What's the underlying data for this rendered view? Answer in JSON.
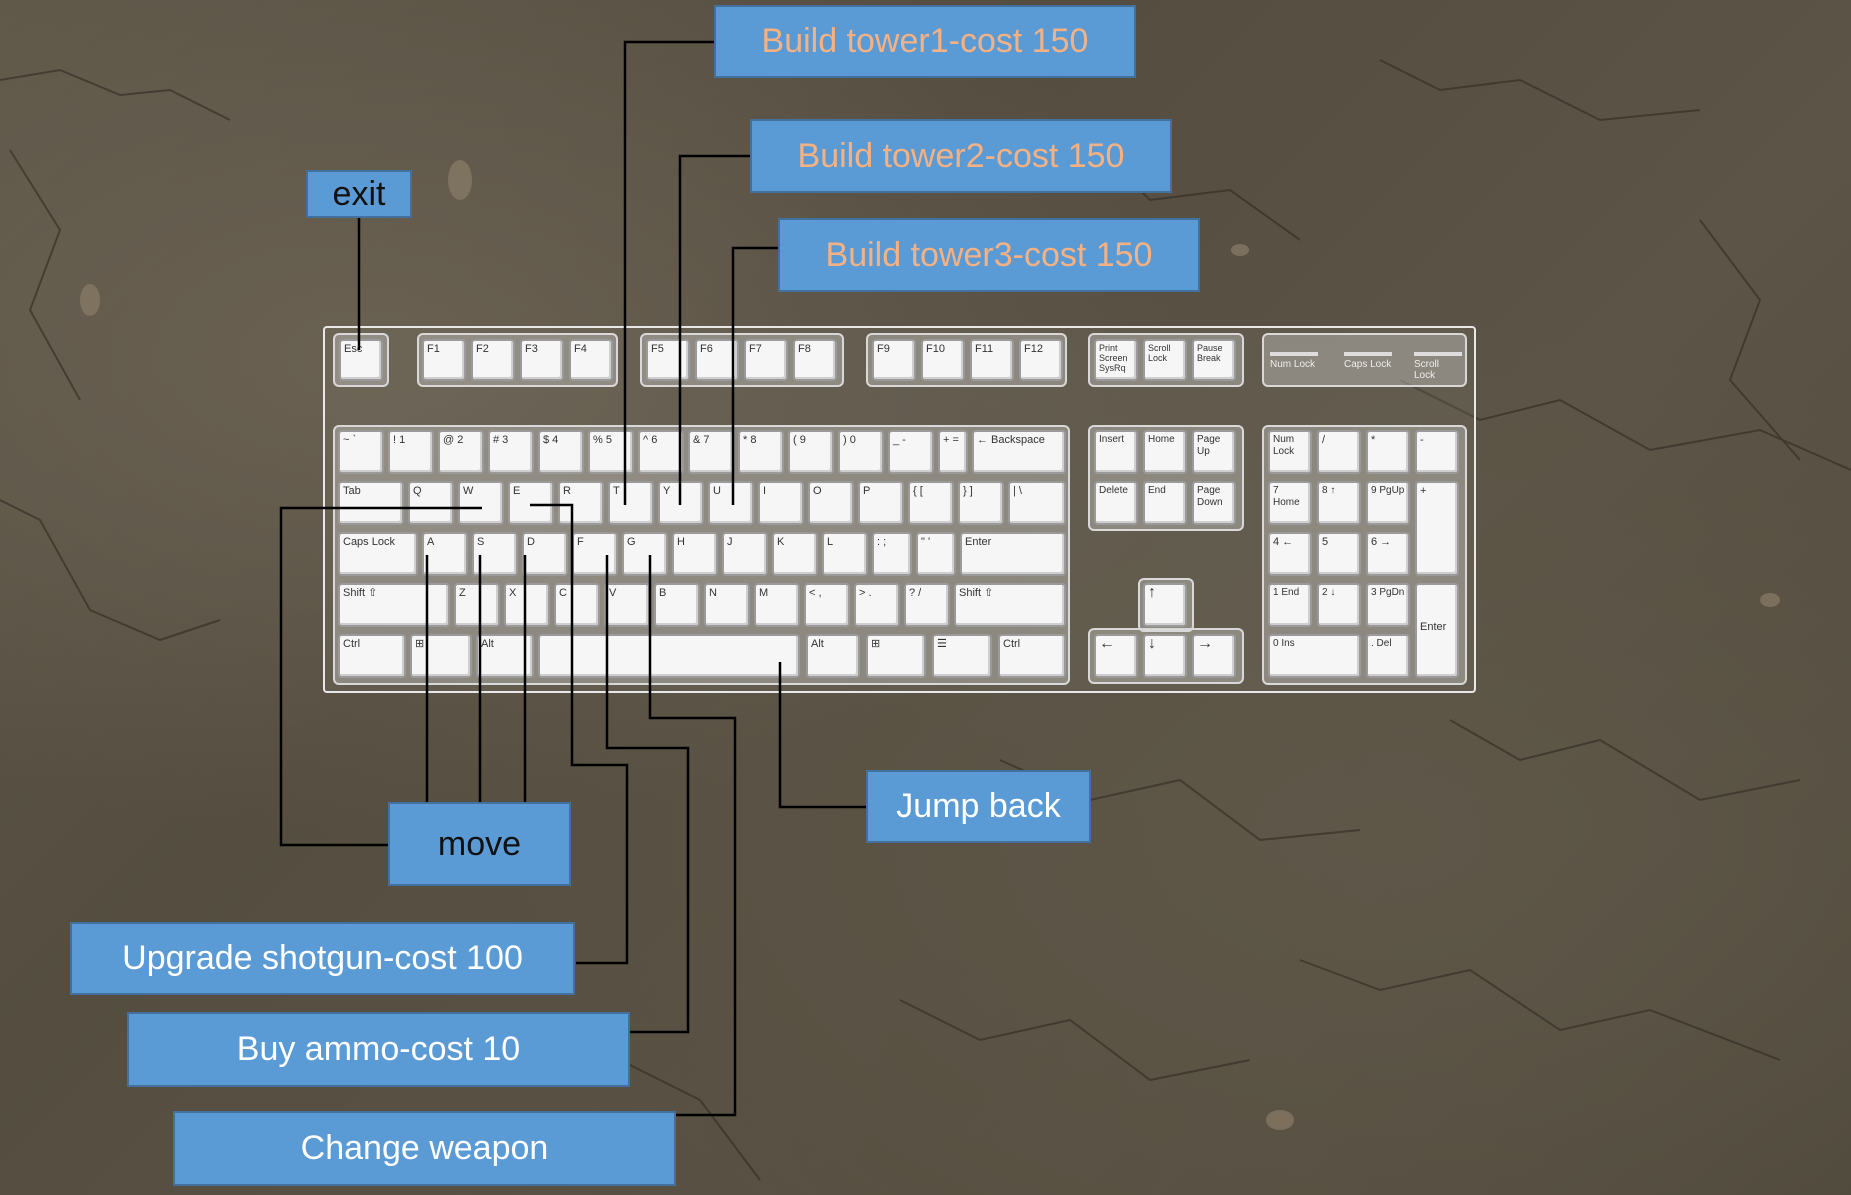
{
  "labels": {
    "tower1": "Build tower1-cost 150",
    "tower2": "Build tower2-cost 150",
    "tower3": "Build tower3-cost 150",
    "exit": "exit",
    "jump_back": "Jump back",
    "move": "move",
    "upgrade_shotgun": "Upgrade shotgun-cost 100",
    "buy_ammo": "Buy ammo-cost 10",
    "change_weapon": "Change weapon"
  },
  "colors": {
    "label_fill": "#5b9bd5",
    "label_border": "#41719c",
    "tower_text": "#f4b183",
    "dark_text": "#111111",
    "white_text": "#ffffff",
    "leader_line": "#000000"
  },
  "keyboard": {
    "fn_row": [
      "Esc",
      "F1",
      "F2",
      "F3",
      "F4",
      "F5",
      "F6",
      "F7",
      "F8",
      "F9",
      "F10",
      "F11",
      "F12"
    ],
    "sys_keys": [
      "Print Screen SysRq",
      "Scroll Lock",
      "Pause Break"
    ],
    "lock_lights": [
      "Num Lock",
      "Caps Lock",
      "Scroll Lock"
    ],
    "row1": [
      "~ `",
      "! 1",
      "@ 2",
      "# 3",
      "$ 4",
      "% 5",
      "^ 6",
      "& 7",
      "* 8",
      "( 9",
      ") 0",
      "_ -",
      "+ =",
      "← Backspace"
    ],
    "row2": [
      "Tab",
      "Q",
      "W",
      "E",
      "R",
      "T",
      "Y",
      "U",
      "I",
      "O",
      "P",
      "{ [",
      "} ]",
      "| \\"
    ],
    "row3": [
      "Caps Lock",
      "A",
      "S",
      "D",
      "F",
      "G",
      "H",
      "J",
      "K",
      "L",
      ": ;",
      "\" '",
      "Enter"
    ],
    "row4": [
      "Shift ⇧",
      "Z",
      "X",
      "C",
      "V",
      "B",
      "N",
      "M",
      "< ,",
      "> .",
      "? /",
      "Shift ⇧"
    ],
    "row5": [
      "Ctrl",
      "⊞",
      "Alt",
      "",
      "Alt",
      "⊞",
      "☰",
      "Ctrl"
    ],
    "nav1": [
      "Insert",
      "Home",
      "Page Up"
    ],
    "nav2": [
      "Delete",
      "End",
      "Page Down"
    ],
    "arrows": [
      "↑",
      "←",
      "↓",
      "→"
    ],
    "numpad_r1": [
      "Num Lock",
      "/",
      "*",
      "-"
    ],
    "numpad_r2": [
      "7 Home",
      "8 ↑",
      "9 PgUp",
      "+"
    ],
    "numpad_r3": [
      "4 ←",
      "5",
      "6 →"
    ],
    "numpad_r4": [
      "1 End",
      "2 ↓",
      "3 PgDn",
      "Enter"
    ],
    "numpad_r5": [
      "0 Ins",
      ". Del"
    ]
  }
}
